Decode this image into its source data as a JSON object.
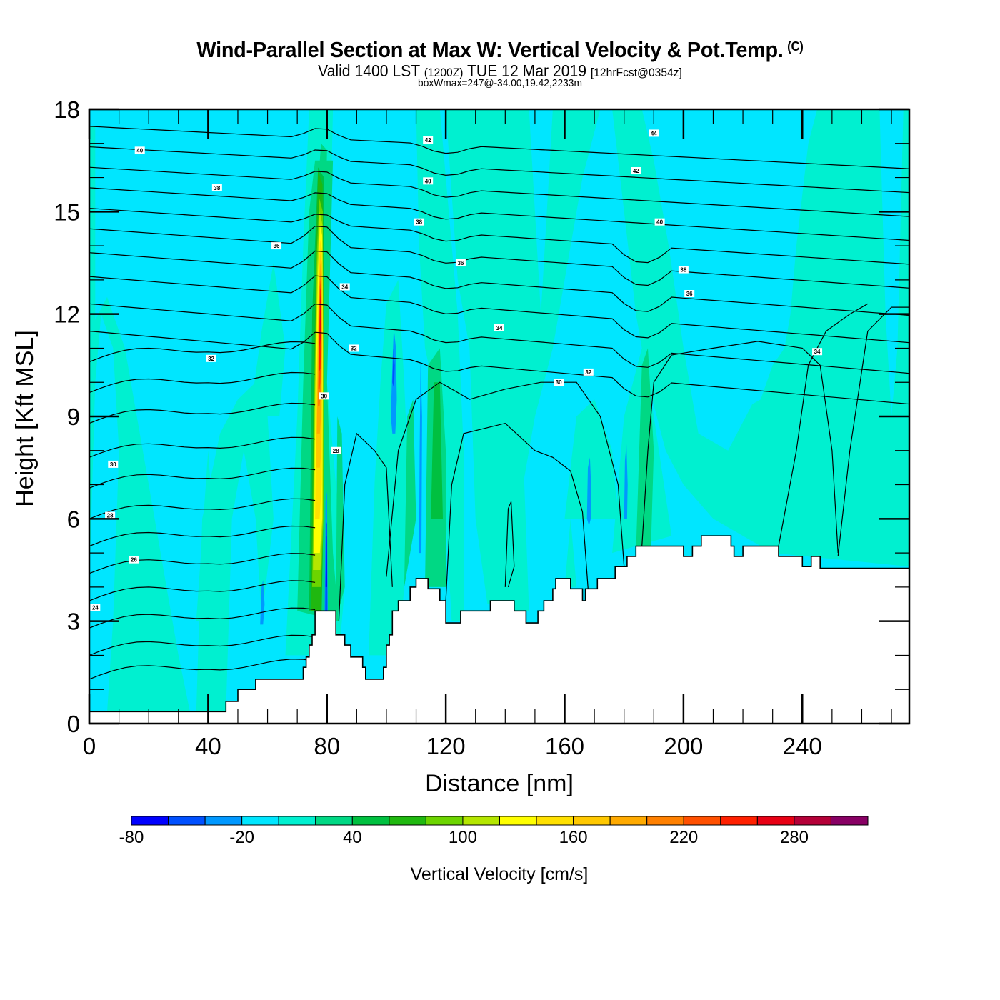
{
  "header": {
    "title": "Wind-Parallel Section at Max W: Vertical Velocity & Pot.Temp.",
    "copyright": "(C)",
    "valid_prefix": "Valid 1400 LST",
    "valid_utc": "(1200Z)",
    "valid_date": "TUE 12 Mar 2019",
    "forecast_info": "[12hrFcst@0354z]",
    "box_info": "boxWmax=247@-34.00,19.42,2233m"
  },
  "chart_data": {
    "type": "heatmap",
    "title": "Wind-Parallel Section at Max W: Vertical Velocity & Pot.Temp.",
    "xlabel": "Distance [nm]",
    "ylabel": "Height [Kft MSL]",
    "xlim": [
      0,
      276
    ],
    "ylim": [
      0,
      18
    ],
    "xticks": [
      0,
      40,
      80,
      120,
      160,
      200,
      240
    ],
    "yticks": [
      0,
      3,
      6,
      9,
      12,
      15,
      18
    ],
    "colorbar": {
      "label": "Vertical Velocity [cm/s]",
      "levels": [
        -80,
        -60,
        -40,
        -20,
        0,
        20,
        40,
        60,
        80,
        100,
        120,
        140,
        160,
        180,
        200,
        220,
        240,
        260,
        280,
        300,
        320
      ],
      "tick_labels": [
        -80,
        -20,
        40,
        100,
        160,
        220,
        280
      ],
      "colors": [
        "#0000ff",
        "#0050ff",
        "#0098ff",
        "#00e6ff",
        "#00f0d0",
        "#00d884",
        "#00c040",
        "#20b810",
        "#6cd400",
        "#b4e600",
        "#ffff00",
        "#ffe000",
        "#ffc800",
        "#ffaa00",
        "#ff8000",
        "#ff5000",
        "#ff2000",
        "#e80014",
        "#b40038",
        "#880064"
      ]
    },
    "max_w_cm_s": 247,
    "updraft_core": {
      "x_nm": 78,
      "top_kft": 16.5,
      "bottom_kft": 3.3,
      "peak_kft": 12.5
    },
    "contour_labels": [
      {
        "x": 17,
        "y": 16.8,
        "text": "40"
      },
      {
        "x": 43,
        "y": 15.7,
        "text": "38"
      },
      {
        "x": 63,
        "y": 14.0,
        "text": "36"
      },
      {
        "x": 41,
        "y": 10.7,
        "text": "32"
      },
      {
        "x": 8,
        "y": 7.6,
        "text": "30"
      },
      {
        "x": 7,
        "y": 6.1,
        "text": "28"
      },
      {
        "x": 15,
        "y": 4.8,
        "text": "26"
      },
      {
        "x": 2,
        "y": 3.4,
        "text": "24"
      },
      {
        "x": 86,
        "y": 12.8,
        "text": "34"
      },
      {
        "x": 89,
        "y": 11.0,
        "text": "32"
      },
      {
        "x": 79,
        "y": 9.6,
        "text": "30"
      },
      {
        "x": 83,
        "y": 8.0,
        "text": "28"
      },
      {
        "x": 114,
        "y": 17.1,
        "text": "42"
      },
      {
        "x": 114,
        "y": 15.9,
        "text": "40"
      },
      {
        "x": 111,
        "y": 14.7,
        "text": "38"
      },
      {
        "x": 125,
        "y": 13.5,
        "text": "36"
      },
      {
        "x": 138,
        "y": 11.6,
        "text": "34"
      },
      {
        "x": 168,
        "y": 10.3,
        "text": "32"
      },
      {
        "x": 158,
        "y": 10.0,
        "text": "30"
      },
      {
        "x": 190,
        "y": 17.3,
        "text": "44"
      },
      {
        "x": 184,
        "y": 16.2,
        "text": "42"
      },
      {
        "x": 192,
        "y": 14.7,
        "text": "40"
      },
      {
        "x": 200,
        "y": 13.3,
        "text": "38"
      },
      {
        "x": 202,
        "y": 12.6,
        "text": "36"
      },
      {
        "x": 245,
        "y": 10.9,
        "text": "34"
      }
    ],
    "terrain_kft": {
      "x": [
        0,
        45,
        46,
        50,
        56,
        62,
        69,
        70,
        72,
        73,
        74,
        75,
        76,
        82,
        83,
        86,
        87,
        88,
        91,
        92,
        93,
        95,
        99,
        100,
        101,
        102,
        104,
        106,
        108,
        110,
        113,
        114,
        116,
        118,
        120,
        124,
        125,
        128,
        135,
        136,
        143,
        144,
        146,
        147,
        150,
        151,
        153,
        154,
        156,
        157,
        160,
        162,
        166,
        167,
        170,
        171,
        176,
        177,
        180,
        181,
        183,
        184,
        186,
        187,
        190,
        194,
        199,
        200,
        202,
        203,
        206,
        213,
        216,
        217,
        219,
        220,
        226,
        231,
        232,
        236,
        239,
        240,
        242,
        243,
        246,
        276
      ],
      "y": [
        0.35,
        0.35,
        0.65,
        1.0,
        1.3,
        1.3,
        1.3,
        1.3,
        1.65,
        1.95,
        2.3,
        2.6,
        3.3,
        3.3,
        2.6,
        2.3,
        2.3,
        1.95,
        1.95,
        1.65,
        1.3,
        1.3,
        1.65,
        2.3,
        2.6,
        3.3,
        3.6,
        3.6,
        4.0,
        4.25,
        4.25,
        3.95,
        3.95,
        3.6,
        2.95,
        2.95,
        3.3,
        3.3,
        3.6,
        3.6,
        3.3,
        3.3,
        3.3,
        2.95,
        2.95,
        3.3,
        3.6,
        3.6,
        3.95,
        4.25,
        4.25,
        3.95,
        3.6,
        3.95,
        3.95,
        4.25,
        4.25,
        4.6,
        4.6,
        4.9,
        4.9,
        5.2,
        5.2,
        5.2,
        5.2,
        5.2,
        5.2,
        4.9,
        4.9,
        5.2,
        5.5,
        5.5,
        5.2,
        4.9,
        4.9,
        5.2,
        5.2,
        5.2,
        4.9,
        4.9,
        4.9,
        4.6,
        4.6,
        4.9,
        4.55,
        4.55
      ]
    }
  }
}
